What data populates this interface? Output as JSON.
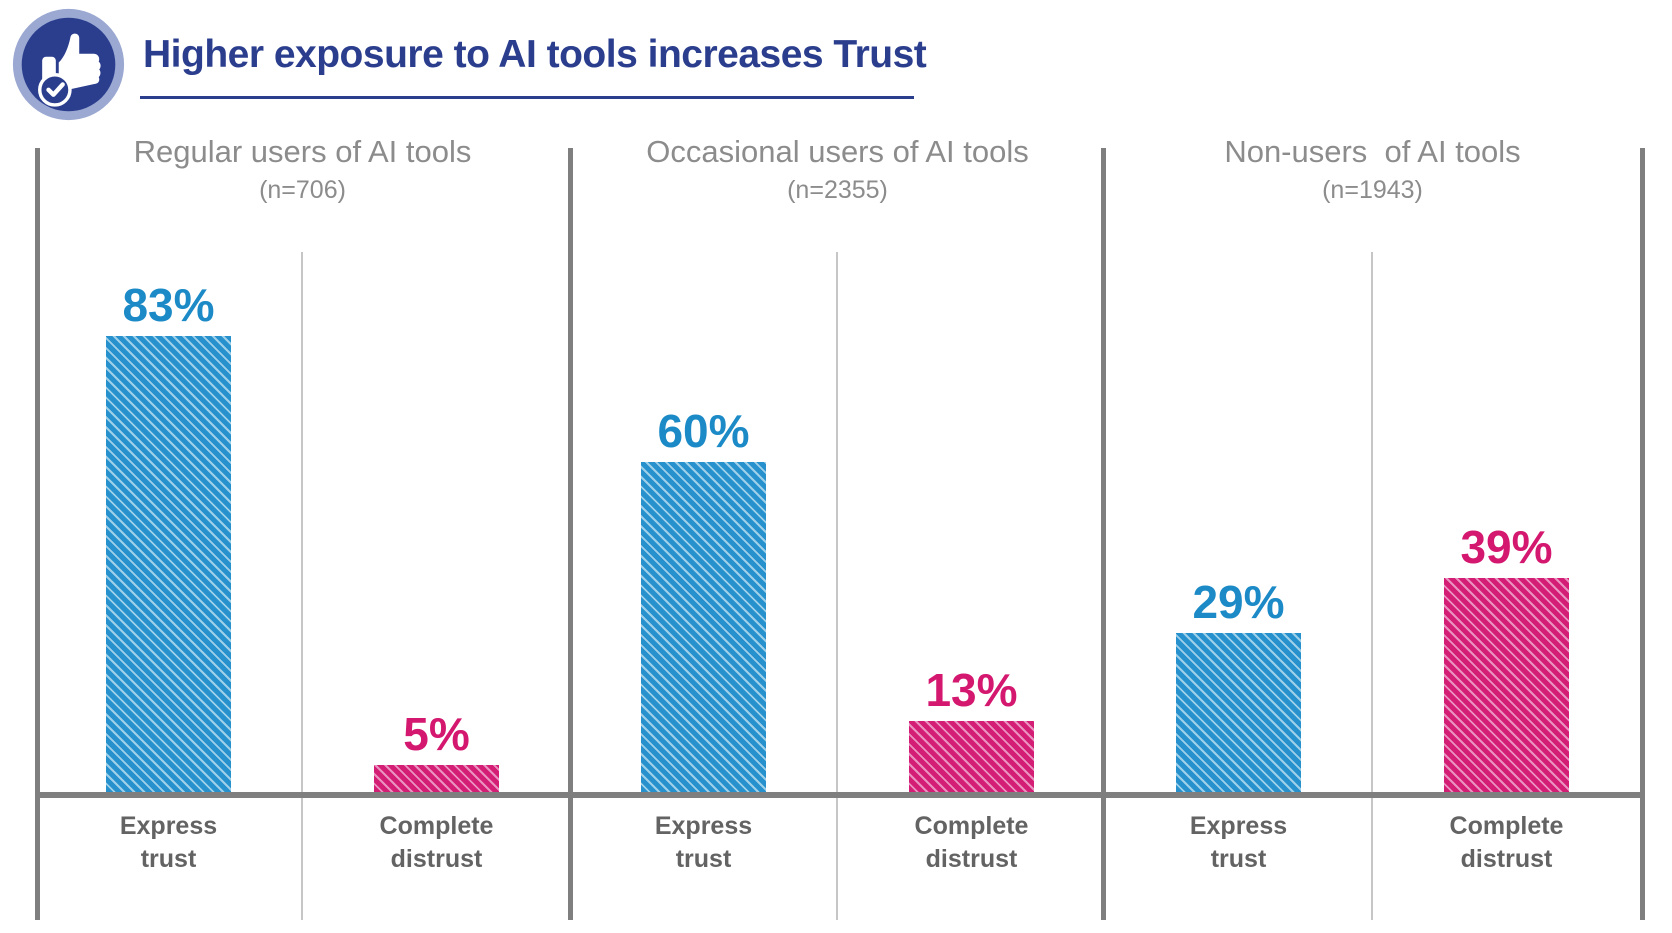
{
  "header": {
    "title": "Higher exposure to AI tools increases Trust",
    "icon": "thumbs-up-check-icon"
  },
  "colors": {
    "navy": "#2b3e8e",
    "icon_ring": "#9aa8d2",
    "blue_bar": "#2691cc",
    "blue_stripe": "#9fd0ea",
    "blue_label": "#1b8ac6",
    "pink_bar": "#d41d74",
    "pink_stripe": "#eb93c0",
    "pink_label": "#d4176f",
    "line_gray": "#7f7f7f",
    "thin_separator_gray": "#c6c6c6",
    "panel_title_gray": "#8c8c8c",
    "category_label_gray": "#636363"
  },
  "chart_data": {
    "type": "bar",
    "title": "Higher exposure to AI tools increases Trust",
    "categories": [
      "Express trust",
      "Complete distrust"
    ],
    "unit": "%",
    "ylim": [
      0,
      100
    ],
    "grid": false,
    "value_labels": true,
    "hatch_pattern": "diagonal-stripes",
    "groups": [
      {
        "label": "Regular users of AI tools",
        "n_label": "(n=706)",
        "n": 706,
        "values": [
          83,
          5
        ]
      },
      {
        "label": "Occasional users of AI tools",
        "n_label": "(n=2355)",
        "n": 2355,
        "values": [
          60,
          13
        ]
      },
      {
        "label": "Non-users  of AI tools",
        "n_label": "(n=1943)",
        "n": 1943,
        "values": [
          29,
          39
        ]
      }
    ],
    "series_colors": {
      "Express trust": "#2691cc",
      "Complete distrust": "#d41d74"
    }
  },
  "panels": [
    {
      "title": "Regular users of AI tools",
      "n": "(n=706)",
      "bars": [
        {
          "category": "Express trust",
          "label": "Express\ntrust",
          "value": 83,
          "value_label": "83%",
          "color": "blue"
        },
        {
          "category": "Complete distrust",
          "label": "Complete\ndistrust",
          "value": 5,
          "value_label": "5%",
          "color": "pink"
        }
      ]
    },
    {
      "title": "Occasional users of AI tools",
      "n": "(n=2355)",
      "bars": [
        {
          "category": "Express trust",
          "label": "Express\ntrust",
          "value": 60,
          "value_label": "60%",
          "color": "blue"
        },
        {
          "category": "Complete distrust",
          "label": "Complete\ndistrust",
          "value": 13,
          "value_label": "13%",
          "color": "pink"
        }
      ]
    },
    {
      "title": "Non-users  of AI tools",
      "n": "(n=1943)",
      "bars": [
        {
          "category": "Express trust",
          "label": "Express\ntrust",
          "value": 29,
          "value_label": "29%",
          "color": "blue"
        },
        {
          "category": "Complete distrust",
          "label": "Complete\ndistrust",
          "value": 39,
          "value_label": "39%",
          "color": "pink"
        }
      ]
    }
  ]
}
